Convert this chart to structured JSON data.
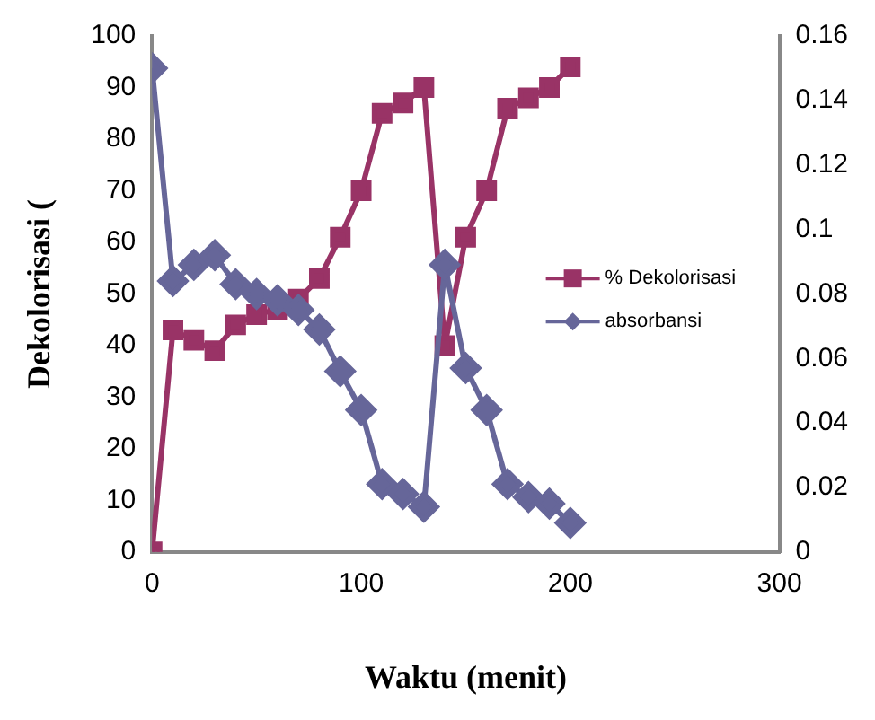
{
  "chart_data": {
    "type": "line",
    "xlabel": "Waktu (menit)",
    "ylabel": "Dekolorisasi (",
    "xlim": [
      0,
      300
    ],
    "xticks": [
      0,
      100,
      200,
      300
    ],
    "ylim": [
      0,
      100
    ],
    "yticks": [
      0,
      10,
      20,
      30,
      40,
      50,
      60,
      70,
      80,
      90,
      100
    ],
    "y2lim": [
      0,
      0.16
    ],
    "y2ticks": [
      0,
      0.02,
      0.04,
      0.06,
      0.08,
      0.1,
      0.12,
      0.14,
      0.16
    ],
    "grid": false,
    "legend": "right",
    "series": [
      {
        "name": "% Dekolorisasi",
        "color": "#993366",
        "marker": "square",
        "x": [
          0,
          10,
          20,
          30,
          40,
          50,
          60,
          70,
          80,
          90,
          100,
          110,
          120,
          130,
          140,
          150,
          160,
          170,
          180,
          190,
          200
        ],
        "values": [
          0,
          43,
          41,
          39,
          44,
          46,
          47,
          49,
          53,
          61,
          70,
          85,
          87,
          90,
          40,
          61,
          70,
          86,
          88,
          90,
          94
        ]
      },
      {
        "name": "absorbansi",
        "color": "#666699",
        "marker": "diamond",
        "axis": "y2",
        "x": [
          0,
          10,
          20,
          30,
          40,
          50,
          60,
          70,
          80,
          90,
          100,
          110,
          120,
          130,
          140,
          150,
          160,
          170,
          180,
          190,
          200
        ],
        "values": [
          0.15,
          0.084,
          0.089,
          0.092,
          0.083,
          0.08,
          0.078,
          0.075,
          0.069,
          0.056,
          0.044,
          0.021,
          0.018,
          0.014,
          0.089,
          0.057,
          0.044,
          0.021,
          0.017,
          0.015,
          0.009
        ]
      }
    ]
  }
}
